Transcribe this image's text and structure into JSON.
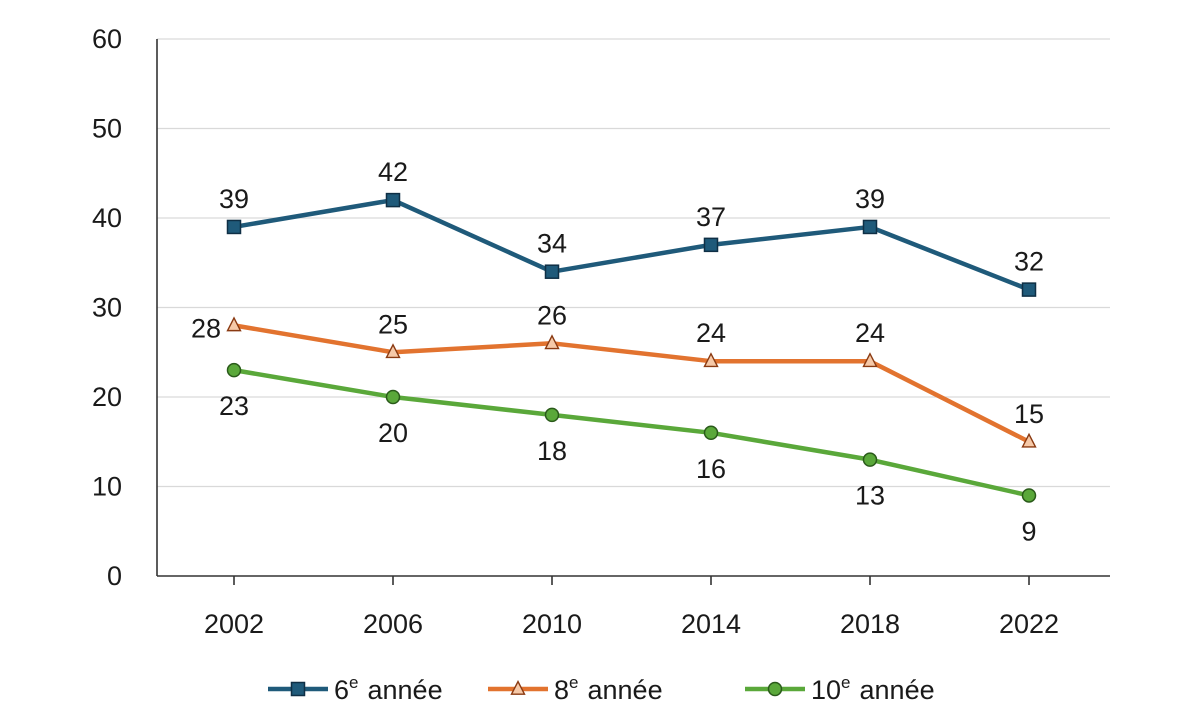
{
  "chart_data": {
    "type": "line",
    "categories": [
      "2002",
      "2006",
      "2010",
      "2014",
      "2018",
      "2022"
    ],
    "ylim": [
      0,
      60
    ],
    "yticks": [
      0,
      10,
      20,
      30,
      40,
      50,
      60
    ],
    "grid": true,
    "legend_position": "bottom",
    "series": [
      {
        "name": "6e année",
        "legend_main": "6",
        "legend_sup": "e",
        "legend_rest": "année",
        "color": "#1f5a7a",
        "marker": "square",
        "values": [
          39,
          42,
          34,
          37,
          39,
          32
        ],
        "label_pos": [
          "above",
          "above",
          "above",
          "above",
          "above",
          "above"
        ]
      },
      {
        "name": "8e année",
        "legend_main": "8",
        "legend_sup": "e",
        "legend_rest": "année",
        "color": "#e2732f",
        "marker": "triangle",
        "values": [
          28,
          25,
          26,
          24,
          24,
          15
        ],
        "label_pos": [
          "left",
          "above",
          "above",
          "above",
          "above",
          "above"
        ]
      },
      {
        "name": "10e année",
        "legend_main": "10",
        "legend_sup": "e",
        "legend_rest": "année",
        "color": "#5aa83a",
        "marker": "circle",
        "values": [
          23,
          20,
          18,
          16,
          13,
          9
        ],
        "label_pos": [
          "below",
          "below",
          "below",
          "below",
          "below",
          "below"
        ]
      }
    ]
  }
}
